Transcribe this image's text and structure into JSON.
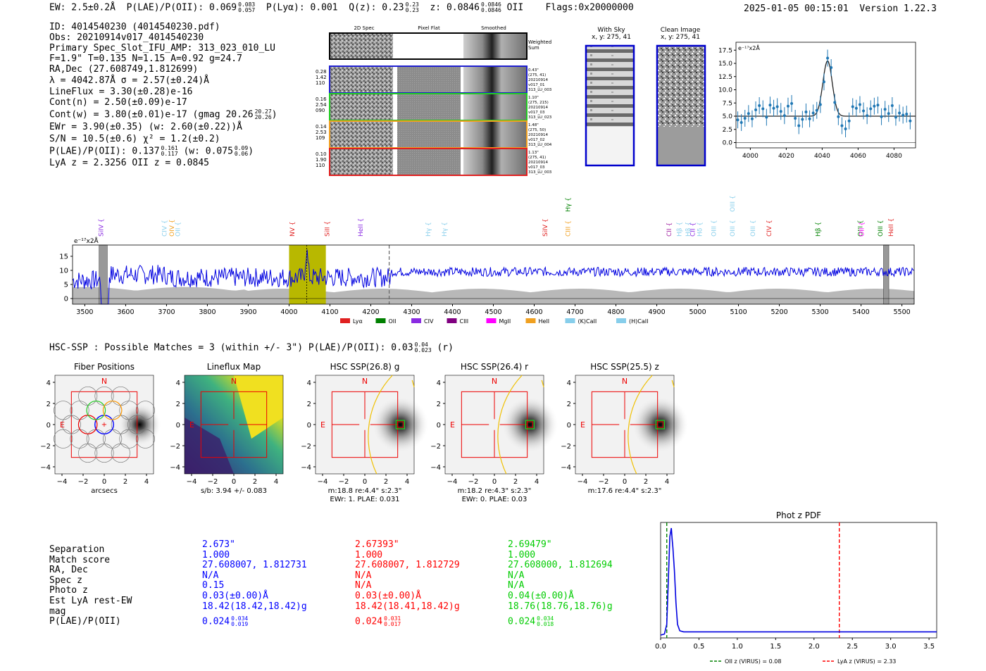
{
  "header": {
    "ew": "EW: 2.5±0.2Å",
    "plae_label": "P(LAE)/P(OII): 0.069",
    "plae_hi": "0.083",
    "plae_lo": "0.057",
    "plya": "P(Lyα): 0.001",
    "qz": "Q(z): 0.23",
    "qz_hi": "0.23",
    "qz_lo": "0.23",
    "z": "z: 0.0846",
    "z_hi": "0.0846",
    "z_lo": "0.0846",
    "z_line": "OII",
    "flags": "Flags:0x20000000",
    "timestamp": "2025-01-05 00:15:01",
    "version": "Version 1.22.3"
  },
  "info": {
    "id": "ID: 4014540230 (4014540230.pdf)",
    "obs": "Obs: 20210914v017_4014540230",
    "primary": "Primary Spec_Slot_IFU_AMP: 313_023_010_LU",
    "fiber": "F=1.9\"  T=0.135  N=1.15  A=0.92  g=24.7",
    "radec": "RA,Dec (27.608749,1.812699)",
    "lambda": "λ = 4042.87Å  σ = 2.57(±0.24)Å",
    "lineflux": "LineFlux = 3.30(±0.28)e-16",
    "contn": "Cont(n) = 2.50(±0.09)e-17",
    "contw": "Cont(w) = 3.80(±0.01)e-17 (gmag 20.26",
    "contw_hi": "20.27",
    "contw_lo": "20.26",
    "contw_end": ")",
    "ewr": "EWr = 3.90(±0.35) (w: 2.60(±0.22))Å",
    "sn": "S/N = 10.5(±0.6)  χ² = 1.2(±0.2)",
    "plae": "P(LAE)/P(OII): 0.137",
    "plae_hi": "0.161",
    "plae_lo": "0.117",
    "plae_w": "(w: 0.075",
    "plae_w_hi": "0.09",
    "plae_w_lo": "0.06",
    "plae_w_end": ")",
    "lyaz": "LyA z = 2.3256   OII z = 0.0845"
  },
  "spec2d": {
    "col_headers": [
      "2D Spec",
      "Pixel Flat",
      "Smoothed"
    ],
    "weighted_label": "Weighted\nSum",
    "rows": [
      {
        "left": [
          "0.28",
          "1.42",
          "110"
        ],
        "right": [
          "0.43\"",
          "(275, 41)",
          "20210914",
          "v017_01",
          "313_LU_003"
        ],
        "color": "#1f1fd0"
      },
      {
        "left": [
          "0.16",
          "2.54",
          "090"
        ],
        "right": [
          "1.10\"",
          "(275, 215)",
          "20210914",
          "v017_03",
          "313_LU_023"
        ],
        "color": "#22cc22"
      },
      {
        "left": [
          "0.14",
          "2.53",
          "109"
        ],
        "right": [
          "1.48\"",
          "(275, 50)",
          "20210914",
          "v017_02",
          "313_LU_004"
        ],
        "color": "#f0a020"
      },
      {
        "left": [
          "0.10",
          "1.90",
          "110"
        ],
        "right": [
          "1.13\"",
          "(275, 41)",
          "20210914",
          "v017_03",
          "313_LU_003"
        ],
        "color": "#e02020"
      }
    ]
  },
  "sky": {
    "with_sky": "With Sky",
    "with_sky_xy": "x, y: 275, 41",
    "clean": "Clean Image",
    "clean_xy": "x, y: 275, 41"
  },
  "zoom_chart": {
    "type": "scatter",
    "ylabel": "e⁻¹⁷x2Å",
    "xlim": [
      3992,
      4092
    ],
    "ylim": [
      -1,
      19
    ],
    "xticks": [
      4000,
      4020,
      4040,
      4060,
      4080
    ],
    "yticks": [
      0.0,
      2.5,
      5.0,
      7.5,
      10.0,
      12.5,
      15.0,
      17.5
    ],
    "ytick_labels": [
      "0.0",
      "2.5",
      "5.0",
      "7.5",
      "10.0",
      "12.5",
      "15.0",
      "17.5"
    ],
    "x": [
      3993,
      3995,
      3997,
      3999,
      4001,
      4003,
      4005,
      4007,
      4009,
      4011,
      4013,
      4015,
      4017,
      4019,
      4021,
      4023,
      4025,
      4027,
      4029,
      4031,
      4033,
      4035,
      4037,
      4039,
      4041,
      4043,
      4045,
      4047,
      4049,
      4051,
      4053,
      4055,
      4057,
      4059,
      4061,
      4063,
      4065,
      4067,
      4069,
      4071,
      4073,
      4075,
      4077,
      4079,
      4081,
      4083,
      4085,
      4087,
      4089
    ],
    "y": [
      4.3,
      3.8,
      4.6,
      5.5,
      4.5,
      6.2,
      7.0,
      6.4,
      4.8,
      7.1,
      6.5,
      6.8,
      5.9,
      5.1,
      6.9,
      7.4,
      4.6,
      3.2,
      4.4,
      5.8,
      4.5,
      5.6,
      6.1,
      7.2,
      11.5,
      16.0,
      14.2,
      7.6,
      4.9,
      3.2,
      2.6,
      4.1,
      6.8,
      6.5,
      7.2,
      6.0,
      5.1,
      6.4,
      6.9,
      7.1,
      4.9,
      6.3,
      5.5,
      7.0,
      4.8,
      5.6,
      5.2,
      5.4,
      4.1
    ],
    "model_cont": 5.0,
    "model_peak": 15.5,
    "model_center": 4043,
    "model_sigma": 2.6
  },
  "full_spectrum": {
    "type": "line",
    "ylabel": "e⁻¹⁷x2Å",
    "xlim": [
      3470,
      5530
    ],
    "ylim": [
      -2,
      19
    ],
    "xticks": [
      3500,
      3600,
      3700,
      3800,
      3900,
      4000,
      4100,
      4200,
      4300,
      4400,
      4500,
      4600,
      4700,
      4800,
      4900,
      5000,
      5100,
      5200,
      5300,
      5400,
      5500
    ],
    "yticks": [
      0,
      5,
      10,
      15
    ],
    "highlight_range": [
      4000,
      4090
    ],
    "line_wave": 4043,
    "dashed_wave": 4245,
    "masked": [
      [
        3535,
        3555
      ],
      [
        5455,
        5468
      ]
    ],
    "lines": [
      {
        "name": "SiIV",
        "wave": 3545,
        "color": "#8a2be2"
      },
      {
        "name": "CIV",
        "wave": 3700,
        "color": "#87ceeb"
      },
      {
        "name": "OIV",
        "wave": 3718,
        "color": "#f0a020"
      },
      {
        "name": "OII",
        "wave": 3733,
        "color": "#87ceeb"
      },
      {
        "name": "NV",
        "wave": 4013,
        "color": "#e02020"
      },
      {
        "name": "SiII",
        "wave": 4098,
        "color": "#e02020"
      },
      {
        "name": "HeII",
        "wave": 4180,
        "color": "#8a2be2"
      },
      {
        "name": "Hγ",
        "wave": 4346,
        "color": "#87ceeb"
      },
      {
        "name": "Hγ",
        "wave": 4385,
        "color": "#87ceeb"
      },
      {
        "name": "SiIV",
        "wave": 4632,
        "color": "#e02020"
      },
      {
        "name": "CIII",
        "wave": 4688,
        "color": "#f0a020"
      },
      {
        "name": "Hγ",
        "wave": 4688,
        "color": "#008000"
      },
      {
        "name": "CII",
        "wave": 4935,
        "color": "#a020a0"
      },
      {
        "name": "Hβ",
        "wave": 4960,
        "color": "#87ceeb"
      },
      {
        "name": "Hβ",
        "wave": 4982,
        "color": "#87ceeb"
      },
      {
        "name": "CII",
        "wave": 4993,
        "color": "#8a2be2"
      },
      {
        "name": "Hδ",
        "wave": 5010,
        "color": "#87ceeb"
      },
      {
        "name": "OIII",
        "wave": 5045,
        "color": "#87ceeb"
      },
      {
        "name": "OIII",
        "wave": 5090,
        "color": "#87ceeb"
      },
      {
        "name": "OIII",
        "wave": 5090,
        "color": "#87ceeb"
      },
      {
        "name": "OIII",
        "wave": 5140,
        "color": "#87ceeb"
      },
      {
        "name": "CIV",
        "wave": 5180,
        "color": "#e02020"
      },
      {
        "name": "Hβ",
        "wave": 5300,
        "color": "#008000"
      },
      {
        "name": "OIII",
        "wave": 5403,
        "color": "#008000"
      },
      {
        "name": "OII",
        "wave": 5407,
        "color": "#ff00ff"
      },
      {
        "name": "OIII",
        "wave": 5452,
        "color": "#008000"
      },
      {
        "name": "HeII",
        "wave": 5478,
        "color": "#e02020"
      }
    ],
    "legend": [
      {
        "name": "Lyα",
        "color": "#e02020"
      },
      {
        "name": "OII",
        "color": "#008000"
      },
      {
        "name": "CIV",
        "color": "#8a2be2"
      },
      {
        "name": "CIII",
        "color": "#800080"
      },
      {
        "name": "MgII",
        "color": "#ff00ff"
      },
      {
        "name": "HeII",
        "color": "#f0a020"
      },
      {
        "name": "(K)CaII",
        "color": "#87ceeb"
      },
      {
        "name": "(H)CaII",
        "color": "#87ceeb"
      }
    ]
  },
  "hsc": {
    "summary": "HSC-SSP : Possible Matches = 3 (within +/- 3\")  P(LAE)/P(OII): 0.03",
    "summary_hi": "0.04",
    "summary_lo": "0.023",
    "summary_end": "(r)",
    "panels": [
      {
        "title": "Fiber Positions",
        "caption": "arcsecs",
        "caption2": ""
      },
      {
        "title": "Lineflux Map",
        "caption": "s/b: 3.94 +/- 0.083",
        "caption2": ""
      },
      {
        "title": "HSC SSP(26.8) g",
        "caption": "m:18.8  re:4.4\"  s:2.3\"",
        "caption2": "EWr: 1. PLAE: 0.031"
      },
      {
        "title": "HSC SSP(26.4) r",
        "caption": "m:18.2  re:4.3\"  s:2.3\"",
        "caption2": "EWr: 0. PLAE: 0.03"
      },
      {
        "title": "HSC SSP(25.5) z",
        "caption": "m:17.6  re:4.4\"  s:2.3\"",
        "caption2": ""
      }
    ],
    "ticks": [
      "4",
      "2",
      "0",
      "−2",
      "−4"
    ],
    "xticks": [
      "−4",
      "−2",
      "0",
      "2",
      "4"
    ],
    "compass_n": "N",
    "compass_e": "E"
  },
  "matches": {
    "labels": [
      "Separation",
      "Match score",
      "RA, Dec",
      "Spec z",
      "Photo z",
      "Est LyA rest-EW",
      "mag",
      "P(LAE)/P(OII)"
    ],
    "columns": [
      {
        "color": "#0000ff",
        "values": [
          "2.673\"",
          "1.000",
          "27.608007, 1.812731",
          "N/A",
          "0.15",
          "0.03(±0.00)Å",
          "18.42(18.42,18.42)g",
          "0.024"
        ],
        "plae_hi": "0.034",
        "plae_lo": "0.019"
      },
      {
        "color": "#ff0000",
        "values": [
          "2.67393\"",
          "1.000",
          "27.608007, 1.812729",
          "N/A",
          "N/A",
          "0.03(±0.00)Å",
          "18.42(18.41,18.42)g",
          "0.024"
        ],
        "plae_hi": "0.031",
        "plae_lo": "0.017"
      },
      {
        "color": "#00cc00",
        "values": [
          "2.69479\"",
          "1.000",
          "27.608000, 1.812694",
          "N/A",
          "N/A",
          "0.04(±0.00)Å",
          "18.76(18.76,18.76)g",
          "0.024"
        ],
        "plae_hi": "0.034",
        "plae_lo": "0.018"
      }
    ]
  },
  "photz_chart": {
    "type": "line",
    "title": "Phot z PDF",
    "xlim": [
      0,
      3.6
    ],
    "xticks": [
      0.0,
      0.5,
      1.0,
      1.5,
      2.0,
      2.5,
      3.0,
      3.5
    ],
    "xtick_labels": [
      "0.0",
      "0.5",
      "1.0",
      "1.5",
      "2.0",
      "2.5",
      "3.0",
      "3.5"
    ],
    "x": [
      0,
      0.05,
      0.08,
      0.1,
      0.12,
      0.14,
      0.15,
      0.16,
      0.18,
      0.2,
      0.22,
      0.25,
      0.3,
      0.5,
      1.0,
      2.0,
      3.0,
      3.6
    ],
    "y": [
      0.0,
      0.01,
      0.1,
      0.5,
      0.92,
      1.0,
      0.9,
      0.82,
      0.6,
      0.3,
      0.1,
      0.04,
      0.03,
      0.03,
      0.03,
      0.03,
      0.03,
      0.03
    ],
    "oii_z": 0.08,
    "lya_z": 2.33,
    "legend": [
      {
        "name": "OII z (VIRUS) = 0.08",
        "color": "#008000"
      },
      {
        "name": "LyA z (VIRUS) = 2.33",
        "color": "#ff0000"
      }
    ]
  }
}
